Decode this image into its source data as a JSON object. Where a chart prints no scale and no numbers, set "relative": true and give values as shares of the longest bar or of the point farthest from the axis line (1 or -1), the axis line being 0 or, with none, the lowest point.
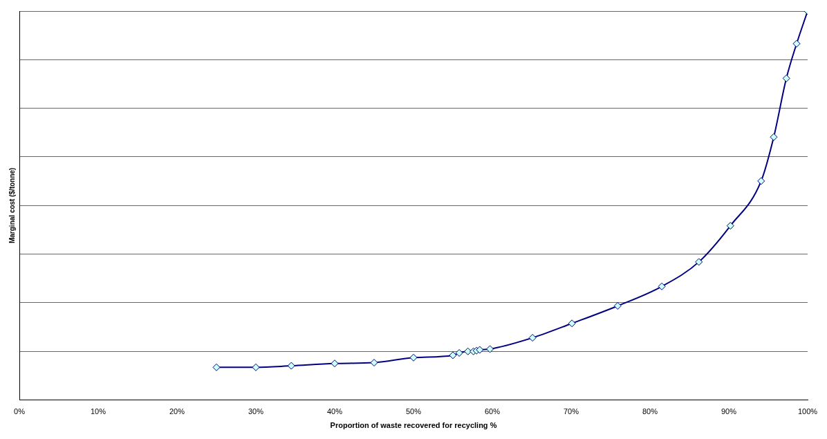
{
  "chart_data": {
    "type": "line",
    "xlabel": "Proportion of waste recovered for recycling %",
    "ylabel": "Marginal cost ($/tonne)",
    "relative": true,
    "x": [
      25,
      30,
      34.5,
      40,
      45,
      50,
      55,
      55.8,
      56.9,
      57.6,
      58,
      58.4,
      59.7,
      65.1,
      70.1,
      75.9,
      81.5,
      86.2,
      90.2,
      94.1,
      95.7,
      97.3,
      98.6,
      100
    ],
    "series": [
      {
        "color": "#000080",
        "values": [
          0.084,
          0.084,
          0.088,
          0.094,
          0.096,
          0.109,
          0.115,
          0.121,
          0.125,
          0.125,
          0.127,
          0.129,
          0.131,
          0.16,
          0.197,
          0.242,
          0.292,
          0.355,
          0.448,
          0.563,
          0.676,
          0.827,
          0.916,
          1
        ]
      }
    ],
    "xlim": [
      0,
      100
    ],
    "xticks": [
      {
        "value": 0,
        "label": "0%"
      },
      {
        "value": 10,
        "label": "10%"
      },
      {
        "value": 20,
        "label": "20%"
      },
      {
        "value": 30,
        "label": "30%"
      },
      {
        "value": 40,
        "label": "40%"
      },
      {
        "value": 50,
        "label": "50%"
      },
      {
        "value": 60,
        "label": "60%"
      },
      {
        "value": 70,
        "label": "70%"
      },
      {
        "value": 80,
        "label": "80%"
      },
      {
        "value": 90,
        "label": "90%"
      },
      {
        "value": 100,
        "label": "100%"
      }
    ],
    "grid": "y",
    "legend": false,
    "marker": "diamond",
    "line_style": "solid"
  }
}
